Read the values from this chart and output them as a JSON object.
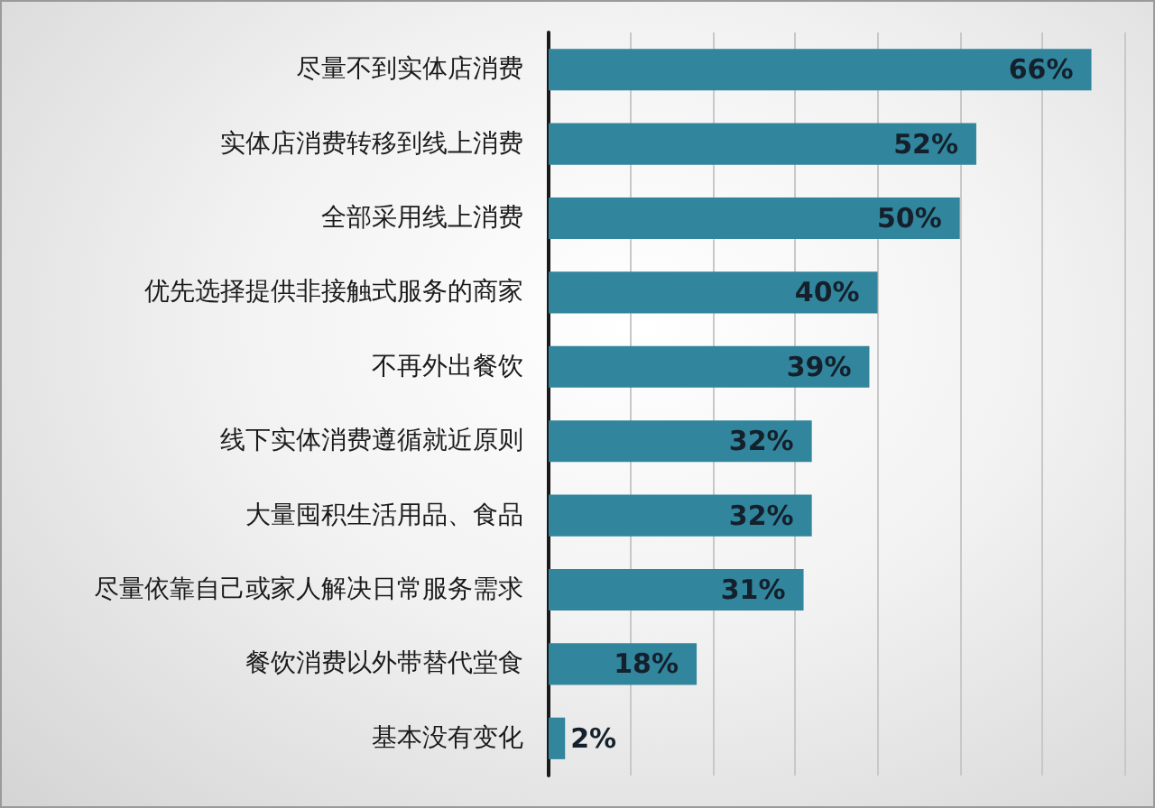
{
  "chart_data": {
    "type": "bar",
    "orientation": "horizontal",
    "categories": [
      "尽量不到实体店消费",
      "实体店消费转移到线上消费",
      "全部采用线上消费",
      "优先选择提供非接触式服务的商家",
      "不再外出餐饮",
      "线下实体消费遵循就近原则",
      "大量囤积生活用品、食品",
      "尽量依靠自己或家人解决日常服务需求",
      "餐饮消费以外带替代堂食",
      "基本没有变化"
    ],
    "values": [
      66,
      52,
      50,
      40,
      39,
      32,
      32,
      31,
      18,
      2
    ],
    "value_labels": [
      "66%",
      "52%",
      "50%",
      "40%",
      "39%",
      "32%",
      "32%",
      "31%",
      "18%",
      "2%"
    ],
    "color": "#31859c",
    "xlim": [
      0,
      70
    ],
    "xticks": [
      0,
      10,
      20,
      30,
      40,
      50,
      60,
      70
    ],
    "grid": "x",
    "tick_labels": "y"
  }
}
